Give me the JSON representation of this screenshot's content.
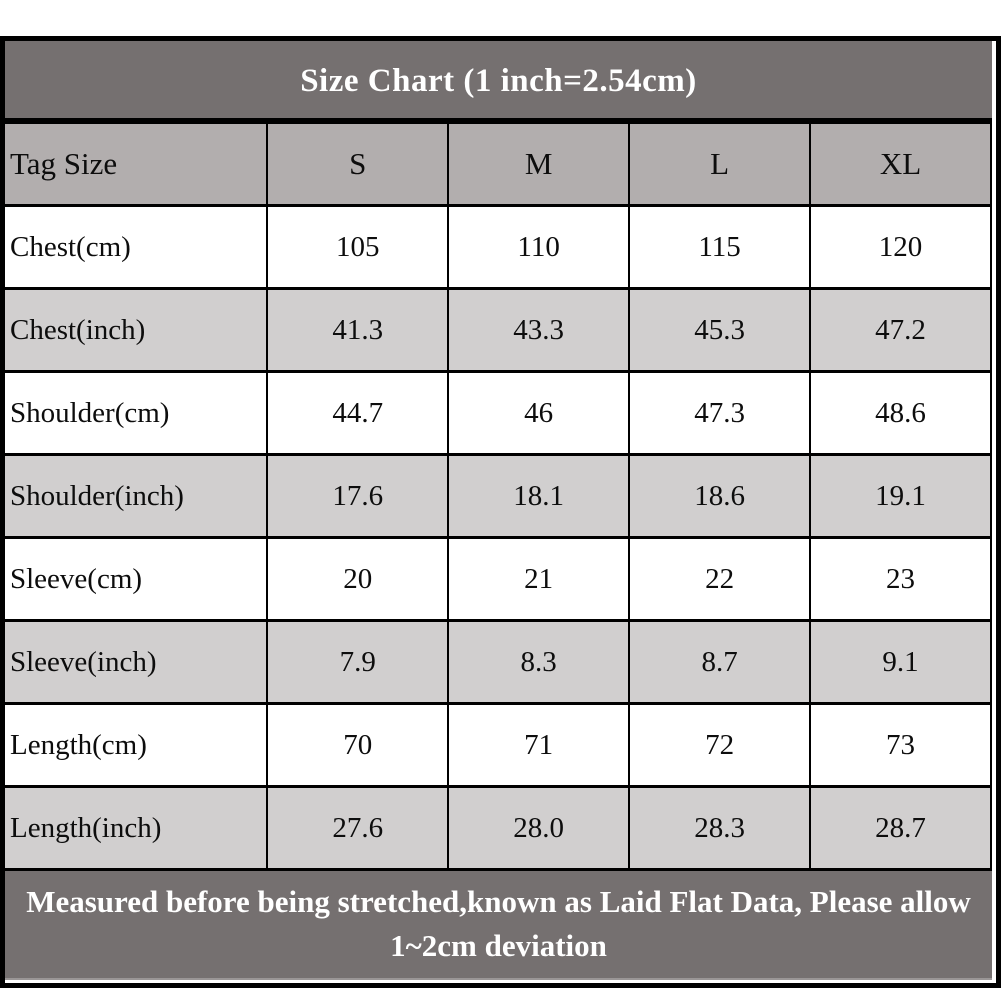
{
  "colors": {
    "page_bg": "#ffffff",
    "title_bg": "#757070",
    "title_text": "#ffffff",
    "header_row_bg": "#b2aeae",
    "row_white_bg": "#ffffff",
    "row_gray_bg": "#d1cfcf",
    "cell_text": "#0d0d0d",
    "border": "#000000",
    "footer_bg": "#757070",
    "footer_text": "#ffffff"
  },
  "chart_data": {
    "type": "table",
    "title": "Size Chart (1 inch=2.54cm)",
    "columns": [
      "Tag Size",
      "S",
      "M",
      "L",
      "XL"
    ],
    "rows": [
      [
        "Chest(cm)",
        "105",
        "110",
        "115",
        "120"
      ],
      [
        "Chest(inch)",
        "41.3",
        "43.3",
        "45.3",
        "47.2"
      ],
      [
        "Shoulder(cm)",
        "44.7",
        "46",
        "47.3",
        "48.6"
      ],
      [
        "Shoulder(inch)",
        "17.6",
        "18.1",
        "18.6",
        "19.1"
      ],
      [
        "Sleeve(cm)",
        "20",
        "21",
        "22",
        "23"
      ],
      [
        "Sleeve(inch)",
        "7.9",
        "8.3",
        "8.7",
        "9.1"
      ],
      [
        "Length(cm)",
        "70",
        "71",
        "72",
        "73"
      ],
      [
        "Length(inch)",
        "27.6",
        "28.0",
        "28.3",
        "28.7"
      ]
    ],
    "note": "Measured before being stretched,known as Laid Flat Data, Please allow 1~2cm deviation"
  }
}
